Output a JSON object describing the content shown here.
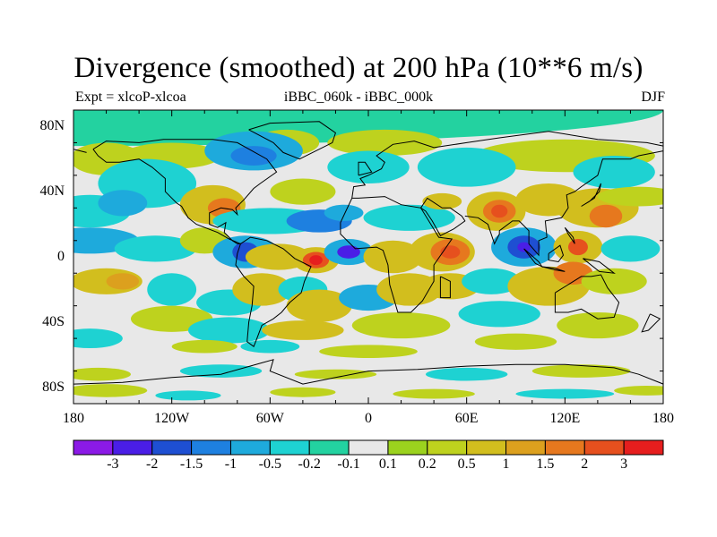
{
  "title": "Divergence (smoothed) at 200 hPa (10**6 m/s)",
  "subtitle_left": "Expt = xlcoP-xlcoa",
  "subtitle_center": "iBBC_060k - iBBC_000k",
  "subtitle_right": "DJF",
  "y_ticks": [
    {
      "label": "80N",
      "lat": 80
    },
    {
      "label": "40N",
      "lat": 40
    },
    {
      "label": "0",
      "lat": 0
    },
    {
      "label": "40S",
      "lat": -40
    },
    {
      "label": "80S",
      "lat": -80
    }
  ],
  "x_ticks": [
    {
      "label": "180",
      "lon": -180
    },
    {
      "label": "120W",
      "lon": -120
    },
    {
      "label": "60W",
      "lon": -60
    },
    {
      "label": "0",
      "lon": 0
    },
    {
      "label": "60E",
      "lon": 60
    },
    {
      "label": "120E",
      "lon": 120
    },
    {
      "label": "180",
      "lon": 180
    }
  ],
  "colorbar": {
    "colors": [
      "#8b1ae6",
      "#4a1ee6",
      "#1e4fd2",
      "#1e80e0",
      "#1eaadc",
      "#1ed2d2",
      "#23d2a0",
      "#e8e8e8",
      "#9bd21e",
      "#bed21e",
      "#d2be1e",
      "#dca01e",
      "#e6781e",
      "#e6501e",
      "#e61e1e"
    ],
    "labels": [
      "-3",
      "-2",
      "-1.5",
      "-1",
      "-0.5",
      "-0.2",
      "-0.1",
      "0.1",
      "0.2",
      "0.5",
      "1",
      "1.5",
      "2",
      "3"
    ]
  },
  "chart_data": {
    "type": "heatmap",
    "title": "Divergence (smoothed) at 200 hPa (10**6 m/s)",
    "projection": "cylindrical equidistant",
    "lon_range": [
      -180,
      180
    ],
    "lat_range": [
      -90,
      90
    ],
    "contour_levels": [
      -3,
      -2,
      -1.5,
      -1,
      -0.5,
      -0.2,
      -0.1,
      0.1,
      0.2,
      0.5,
      1,
      1.5,
      2,
      3
    ],
    "features": [
      {
        "lon": 78,
        "lat": 28,
        "value": 2.8,
        "note": "positive max over India"
      },
      {
        "lon": 95,
        "lat": 6,
        "value": -3.0,
        "note": "negative min Bay of Bengal / SE Asia"
      },
      {
        "lon": 128,
        "lat": 6,
        "value": 2.0,
        "note": "positive max Philippines"
      },
      {
        "lon": 145,
        "lat": 25,
        "value": 1.8,
        "note": "positive max W Pacific"
      },
      {
        "lon": -32,
        "lat": -2,
        "value": 3.0,
        "note": "positive max equatorial Atlantic"
      },
      {
        "lon": -12,
        "lat": 3,
        "value": -2.8,
        "note": "negative min Gulf of Guinea"
      },
      {
        "lon": -75,
        "lat": 3,
        "value": -2.0,
        "note": "negative min N South America"
      },
      {
        "lon": 50,
        "lat": 3,
        "value": 2.2,
        "note": "positive max E Africa"
      },
      {
        "lon": -90,
        "lat": 30,
        "value": 1.6,
        "note": "positive max SE North America"
      },
      {
        "lon": -30,
        "lat": 25,
        "value": -1.5,
        "note": "negative min subtropical Atlantic"
      }
    ]
  }
}
